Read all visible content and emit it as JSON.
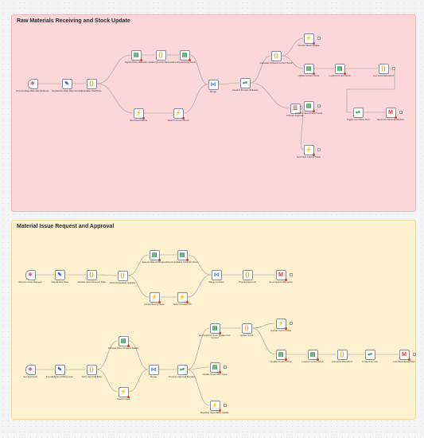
{
  "stickies": {
    "raw": {
      "title": "Raw Materials Receiving and Stock Update"
    },
    "issue": {
      "title": "Material Issue Request and Approval"
    }
  },
  "nodes": {
    "r_receive": {
      "label": "Receive Raw Materials Webhook",
      "icon": "webhook-icon",
      "glyph": "⚛",
      "color": "#c94e73"
    },
    "r_standardize": {
      "label": "Standardize Raw Material Data",
      "icon": "pencil-icon",
      "glyph": "✎",
      "color": "#3b5bdb"
    },
    "r_calc": {
      "label": "Calculate Total Price",
      "icon": "code-braces-icon",
      "glyph": "{}",
      "color": "#e6a23c"
    },
    "r_append": {
      "label": "Append Raw Materials",
      "icon": "sheets-icon",
      "glyph": "▤",
      "color": "#1e8e3e"
    },
    "r_update_qty": {
      "label": "Update Quantity Received",
      "icon": "code-braces-icon",
      "glyph": "{}",
      "color": "#e6a23c"
    },
    "r_lookup_stock": {
      "label": "Lookup Existing Stock",
      "icon": "sheets-icon",
      "glyph": "▤",
      "color": "#1e8e3e"
    },
    "r_new_record": {
      "label": "New Record Row",
      "icon": "supabase-icon",
      "glyph": "⚡",
      "color": "#3ecf8e"
    },
    "r_search_stock": {
      "label": "Search Current Stock",
      "icon": "supabase-icon",
      "glyph": "⚡",
      "color": "#3ecf8e"
    },
    "r_merge": {
      "label": "Merge",
      "icon": "merge-icon",
      "glyph": "⋈",
      "color": "#5a8dee"
    },
    "r_check": {
      "label": "Check If Product ID Exists",
      "icon": "if-icon",
      "glyph": "⇌",
      "color": "#16a34a"
    },
    "r_calc_updated": {
      "label": "Calculate Updated Current Stock",
      "icon": "code-braces-icon",
      "glyph": "{}",
      "color": "#e6a23c"
    },
    "r_cs_update": {
      "label": "Current Stock Update",
      "icon": "supabase-icon",
      "glyph": "⚡",
      "color": "#3ecf8e"
    },
    "r_update_cs": {
      "label": "Update Current Stock",
      "icon": "sheets-icon",
      "glyph": "▤",
      "color": "#1e8e3e"
    },
    "r_lookup_cs": {
      "label": "Lookup Current Stock",
      "icon": "sheets-icon",
      "glyph": "▤",
      "color": "#1e8e3e"
    },
    "r_low_detect": {
      "label": "Low stock Detection?",
      "icon": "code-braces-icon",
      "glyph": "{}",
      "color": "#e6a23c"
    },
    "r_format": {
      "label": "Format response",
      "icon": "list-icon",
      "glyph": "☰",
      "color": "#e03131"
    },
    "r_init_product": {
      "label": "Initialize New Product stock",
      "icon": "sheets-icon",
      "glyph": "▤",
      "color": "#1e8e3e"
    },
    "r_new_row": {
      "label": "New Row Current Stock",
      "icon": "supabase-icon",
      "glyph": "⚡",
      "color": "#3ecf8e"
    },
    "r_trigger_low": {
      "label": "Trigger Low Stock Alert",
      "icon": "if-icon",
      "glyph": "⇌",
      "color": "#16a34a"
    },
    "r_send_email": {
      "label": "Send Low Stock Email Alert",
      "icon": "gmail-icon",
      "glyph": "M",
      "color": "#d93025"
    },
    "i_receive": {
      "label": "Receive Issue Request",
      "icon": "webhook-icon",
      "glyph": "⚛",
      "color": "#c94e73"
    },
    "i_standardize": {
      "label": "Standardize Data",
      "icon": "pencil-icon",
      "glyph": "✎",
      "color": "#3b5bdb"
    },
    "i_validate": {
      "label": "Validate Issue Request Data",
      "icon": "code-braces-icon",
      "glyph": "{}",
      "color": "#e6a23c"
    },
    "i_verify_qty": {
      "label": "Verify Requested Quantity",
      "icon": "code-braces-icon",
      "glyph": "{}",
      "color": "#e6a23c"
    },
    "i_append_req": {
      "label": "Append Material Request",
      "icon": "sheets-icon",
      "glyph": "▤",
      "color": "#1e8e3e"
    },
    "i_check_avail": {
      "label": "Check Available Stock for Issue",
      "icon": "sheets-icon",
      "glyph": "▤",
      "color": "#1e8e3e"
    },
    "i_create_record": {
      "label": "Create Record Issue",
      "icon": "supabase-icon",
      "glyph": "⚡",
      "color": "#3ecf8e"
    },
    "i_search_product": {
      "label": "Search Product ID",
      "icon": "supabase-icon",
      "glyph": "⚡",
      "color": "#3ecf8e"
    },
    "i_merge_lookups": {
      "label": "Merge Lookups",
      "icon": "merge-icon",
      "glyph": "⋈",
      "color": "#5a8dee"
    },
    "i_prepare": {
      "label": "Prepare Approval",
      "icon": "code-braces-icon",
      "glyph": "{}",
      "color": "#e6a23c"
    },
    "i_send_approval": {
      "label": "Send Approval Request",
      "icon": "gmail-icon",
      "glyph": "M",
      "color": "#d93025"
    },
    "a_get_approvals": {
      "label": "Get Approvals",
      "icon": "webhook-icon",
      "glyph": "⚛",
      "color": "#c94e73"
    },
    "a_format": {
      "label": "Format Approval Response",
      "icon": "pencil-icon",
      "glyph": "✎",
      "color": "#3b5bdb"
    },
    "a_verify": {
      "label": "Verify Approval Data",
      "icon": "code-braces-icon",
      "glyph": "{}",
      "color": "#e6a23c"
    },
    "a_retrieve": {
      "label": "Retrieve Issue Request Details",
      "icon": "sheets-icon",
      "glyph": "▤",
      "color": "#1e8e3e"
    },
    "a_search_issue": {
      "label": "Search Issue",
      "icon": "supabase-icon",
      "glyph": "⚡",
      "color": "#3ecf8e"
    },
    "a_merge": {
      "label": "Merge",
      "icon": "merge-icon",
      "glyph": "⋈",
      "color": "#5a8dee"
    },
    "a_process": {
      "label": "Process Approval Decision",
      "icon": "if-icon",
      "glyph": "⇌",
      "color": "#16a34a"
    },
    "a_get_stock": {
      "label": "Get Stock for Issue Update from Current",
      "icon": "sheets-icon",
      "glyph": "▤",
      "color": "#1e8e3e"
    },
    "a_update_stock_after": {
      "label": "Update Stock After Issue",
      "icon": "sheets-icon",
      "glyph": "▤",
      "color": "#1e8e3e"
    },
    "a_rejected": {
      "label": "Rejected Issue Table Update",
      "icon": "supabase-icon",
      "glyph": "⚡",
      "color": "#3ecf8e"
    },
    "a_update_stock": {
      "label": "Update Stock",
      "icon": "code-braces-icon",
      "glyph": "{}",
      "color": "#e6a23c"
    },
    "a_update_cs_data": {
      "label": "Update Current Data",
      "icon": "supabase-icon",
      "glyph": "⚡",
      "color": "#3ecf8e"
    },
    "a_update_cs": {
      "label": "Update Current Stock",
      "icon": "sheets-icon",
      "glyph": "▤",
      "color": "#1e8e3e"
    },
    "a_lookup_cs": {
      "label": "Lookup Current Stock",
      "icon": "sheets-icon",
      "glyph": "▤",
      "color": "#1e8e3e"
    },
    "a_low_detect": {
      "label": "Low stock Detection?",
      "icon": "code-braces-icon",
      "glyph": "{}",
      "color": "#e6a23c"
    },
    "a_is_low": {
      "label": "Is Stock so Low",
      "icon": "if-icon",
      "glyph": "⇌",
      "color": "#16a34a"
    },
    "a_send_email": {
      "label": "Low Stock Email Alert",
      "icon": "gmail-icon",
      "glyph": "M",
      "color": "#d93025"
    }
  }
}
